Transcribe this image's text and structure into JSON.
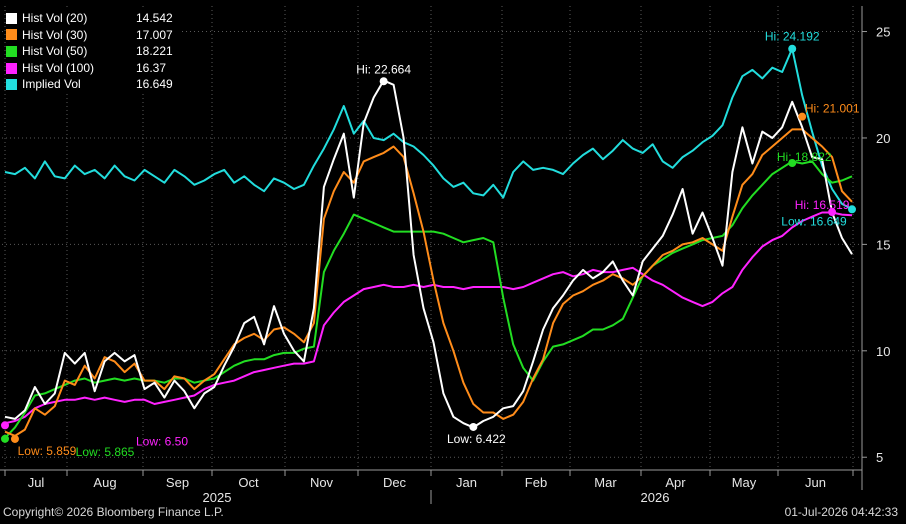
{
  "chart_data": {
    "type": "line",
    "yaxis": {
      "ticks": [
        5,
        10,
        15,
        20,
        25
      ],
      "ylim": [
        4.4,
        26.2
      ],
      "side": "right"
    },
    "xaxis": {
      "months": [
        "Jul",
        "Aug",
        "Sep",
        "Oct",
        "Nov",
        "Dec",
        "Jan",
        "Feb",
        "Mar",
        "Apr",
        "May",
        "Jun"
      ],
      "years": [
        "2025",
        "2026"
      ]
    },
    "grid": true,
    "legend_position": "top-left",
    "series": [
      {
        "name": "Hist Vol (20)",
        "last": "14.542",
        "color": "#ffffff",
        "y": [
          6.9,
          6.8,
          7.2,
          8.3,
          7.5,
          8.0,
          9.9,
          9.4,
          9.9,
          8.1,
          9.5,
          9.9,
          9.5,
          9.8,
          8.2,
          8.5,
          7.8,
          8.6,
          8.1,
          7.3,
          8.0,
          8.3,
          9.3,
          10.2,
          11.3,
          11.6,
          10.3,
          12.1,
          10.8,
          10.0,
          9.5,
          12.0,
          17.7,
          19.0,
          20.2,
          17.2,
          20.7,
          21.9,
          22.7,
          22.5,
          20.0,
          14.5,
          12.0,
          10.4,
          8.0,
          6.9,
          6.6,
          6.4,
          6.7,
          6.9,
          7.3,
          7.4,
          8.1,
          9.5,
          11.0,
          12.0,
          12.6,
          13.3,
          13.8,
          13.4,
          13.7,
          14.2,
          13.3,
          12.6,
          14.2,
          14.8,
          15.4,
          16.4,
          17.6,
          15.5,
          16.5,
          15.3,
          14.0,
          18.4,
          20.5,
          18.8,
          20.3,
          20.0,
          20.5,
          21.7,
          20.5,
          19.1,
          19.0,
          16.5,
          15.3,
          14.54
        ]
      },
      {
        "name": "Hist Vol (30)",
        "last": "17.007",
        "color": "#ff8c1a",
        "y": [
          6.2,
          6.0,
          6.3,
          7.3,
          7.0,
          7.4,
          8.6,
          8.4,
          9.3,
          8.7,
          9.7,
          9.5,
          9.0,
          9.4,
          8.6,
          8.6,
          8.2,
          8.8,
          8.7,
          8.2,
          8.6,
          8.9,
          9.6,
          10.3,
          10.6,
          10.8,
          10.5,
          11.0,
          11.1,
          10.8,
          10.4,
          11.3,
          16.2,
          17.5,
          18.4,
          17.9,
          18.9,
          19.1,
          19.3,
          19.6,
          19.1,
          17.4,
          15.6,
          13.3,
          11.3,
          10.0,
          8.5,
          7.5,
          7.1,
          7.1,
          6.8,
          7.0,
          7.6,
          8.7,
          9.6,
          11.3,
          12.2,
          12.6,
          12.8,
          13.1,
          13.3,
          13.6,
          13.4,
          13.1,
          13.5,
          14.0,
          14.5,
          14.7,
          15.0,
          15.1,
          15.3,
          15.0,
          14.7,
          16.3,
          17.8,
          18.3,
          19.2,
          19.6,
          20.0,
          20.4,
          20.4,
          20.0,
          19.6,
          19.1,
          17.5,
          17.0
        ]
      },
      {
        "name": "Hist Vol (50)",
        "last": "18.221",
        "color": "#22dd22",
        "y": [
          5.9,
          6.4,
          7.1,
          7.9,
          8.0,
          8.2,
          8.4,
          8.6,
          8.7,
          8.5,
          8.6,
          8.7,
          8.6,
          8.7,
          8.6,
          8.6,
          8.5,
          8.7,
          8.7,
          8.5,
          8.6,
          8.7,
          9.0,
          9.3,
          9.5,
          9.6,
          9.6,
          9.8,
          9.9,
          9.9,
          10.1,
          10.2,
          13.7,
          14.7,
          15.5,
          16.4,
          16.2,
          16.0,
          15.8,
          15.6,
          15.6,
          15.6,
          15.6,
          15.6,
          15.5,
          15.3,
          15.1,
          15.2,
          15.3,
          15.1,
          12.5,
          10.3,
          9.2,
          8.6,
          9.5,
          10.2,
          10.3,
          10.5,
          10.7,
          11.0,
          11.0,
          11.2,
          11.5,
          12.5,
          13.5,
          14.0,
          14.3,
          14.6,
          14.8,
          15.0,
          15.2,
          15.3,
          15.4,
          15.9,
          16.7,
          17.3,
          17.8,
          18.3,
          18.6,
          18.9,
          18.8,
          18.9,
          18.3,
          17.9,
          18.0,
          18.2
        ]
      },
      {
        "name": "Hist Vol (100)",
        "last": "16.37",
        "color": "#ff22ff",
        "y": [
          6.6,
          6.7,
          6.9,
          7.3,
          7.5,
          7.6,
          7.7,
          7.7,
          7.8,
          7.7,
          7.8,
          7.7,
          7.6,
          7.7,
          7.7,
          7.5,
          7.6,
          7.7,
          7.8,
          7.9,
          8.2,
          8.4,
          8.5,
          8.6,
          8.8,
          9.0,
          9.1,
          9.2,
          9.3,
          9.4,
          9.4,
          9.5,
          11.2,
          11.8,
          12.3,
          12.6,
          12.9,
          13.0,
          13.1,
          13.0,
          13.0,
          13.1,
          13.0,
          13.1,
          13.0,
          13.0,
          12.9,
          13.0,
          13.0,
          13.0,
          13.0,
          12.9,
          13.0,
          13.2,
          13.4,
          13.6,
          13.7,
          13.5,
          13.6,
          13.8,
          13.7,
          13.7,
          13.8,
          13.9,
          13.6,
          13.3,
          13.1,
          12.8,
          12.5,
          12.3,
          12.1,
          12.3,
          12.7,
          13.0,
          13.8,
          14.4,
          14.9,
          15.2,
          15.4,
          15.8,
          16.1,
          16.3,
          16.5,
          16.5,
          16.4,
          16.37
        ]
      },
      {
        "name": "Implied Vol",
        "last": "16.649",
        "color": "#22dddd",
        "y": [
          18.4,
          18.3,
          18.6,
          18.1,
          18.9,
          18.2,
          18.1,
          18.7,
          18.3,
          18.5,
          18.1,
          18.7,
          18.2,
          18.0,
          18.5,
          18.2,
          17.9,
          18.5,
          18.2,
          17.8,
          18.0,
          18.3,
          18.5,
          17.9,
          18.2,
          17.8,
          17.5,
          18.1,
          17.9,
          17.6,
          17.8,
          18.7,
          19.5,
          20.4,
          21.5,
          20.2,
          20.8,
          20.0,
          19.9,
          20.2,
          19.8,
          19.6,
          19.2,
          18.7,
          18.1,
          17.7,
          17.9,
          17.4,
          17.3,
          17.8,
          17.2,
          18.4,
          18.9,
          18.5,
          18.6,
          18.5,
          18.3,
          18.8,
          19.2,
          19.5,
          19.0,
          19.4,
          19.9,
          19.5,
          19.3,
          19.7,
          18.9,
          18.6,
          19.1,
          19.4,
          19.8,
          20.1,
          20.6,
          21.9,
          22.9,
          23.2,
          22.8,
          23.3,
          23.1,
          24.2,
          22.0,
          20.3,
          18.7,
          17.6,
          16.9,
          16.65
        ]
      }
    ],
    "annotations": [
      {
        "series": 0,
        "type": "hi",
        "label": "Hi: 22.664",
        "value": 22.664,
        "index": 38
      },
      {
        "series": 0,
        "type": "low",
        "label": "Low: 6.422",
        "value": 6.422,
        "index": 47
      },
      {
        "series": 1,
        "type": "hi",
        "label": "Hi: 21.001",
        "value": 21.001,
        "index": 80
      },
      {
        "series": 1,
        "type": "low",
        "label": "Low: 5.859",
        "value": 5.859,
        "index": 1
      },
      {
        "series": 2,
        "type": "hi",
        "label": "Hi: 18.822",
        "value": 18.822,
        "index": 79
      },
      {
        "series": 2,
        "type": "low",
        "label": "Low: 5.865",
        "value": 5.865,
        "index": 0
      },
      {
        "series": 3,
        "type": "hi",
        "label": "Hi: 16.519",
        "value": 16.519,
        "index": 83
      },
      {
        "series": 3,
        "type": "low",
        "label": "Low: 6.50",
        "value": 6.5,
        "index": 0
      },
      {
        "series": 4,
        "type": "hi",
        "label": "Hi: 24.192",
        "value": 24.192,
        "index": 79
      },
      {
        "series": 4,
        "type": "low",
        "label": "Low: 16.649",
        "value": 16.649,
        "index": 85
      }
    ]
  },
  "footer": {
    "copyright": "Copyright© 2026 Bloomberg Finance L.P.",
    "timestamp": "01-Jul-2026 04:42:33"
  }
}
